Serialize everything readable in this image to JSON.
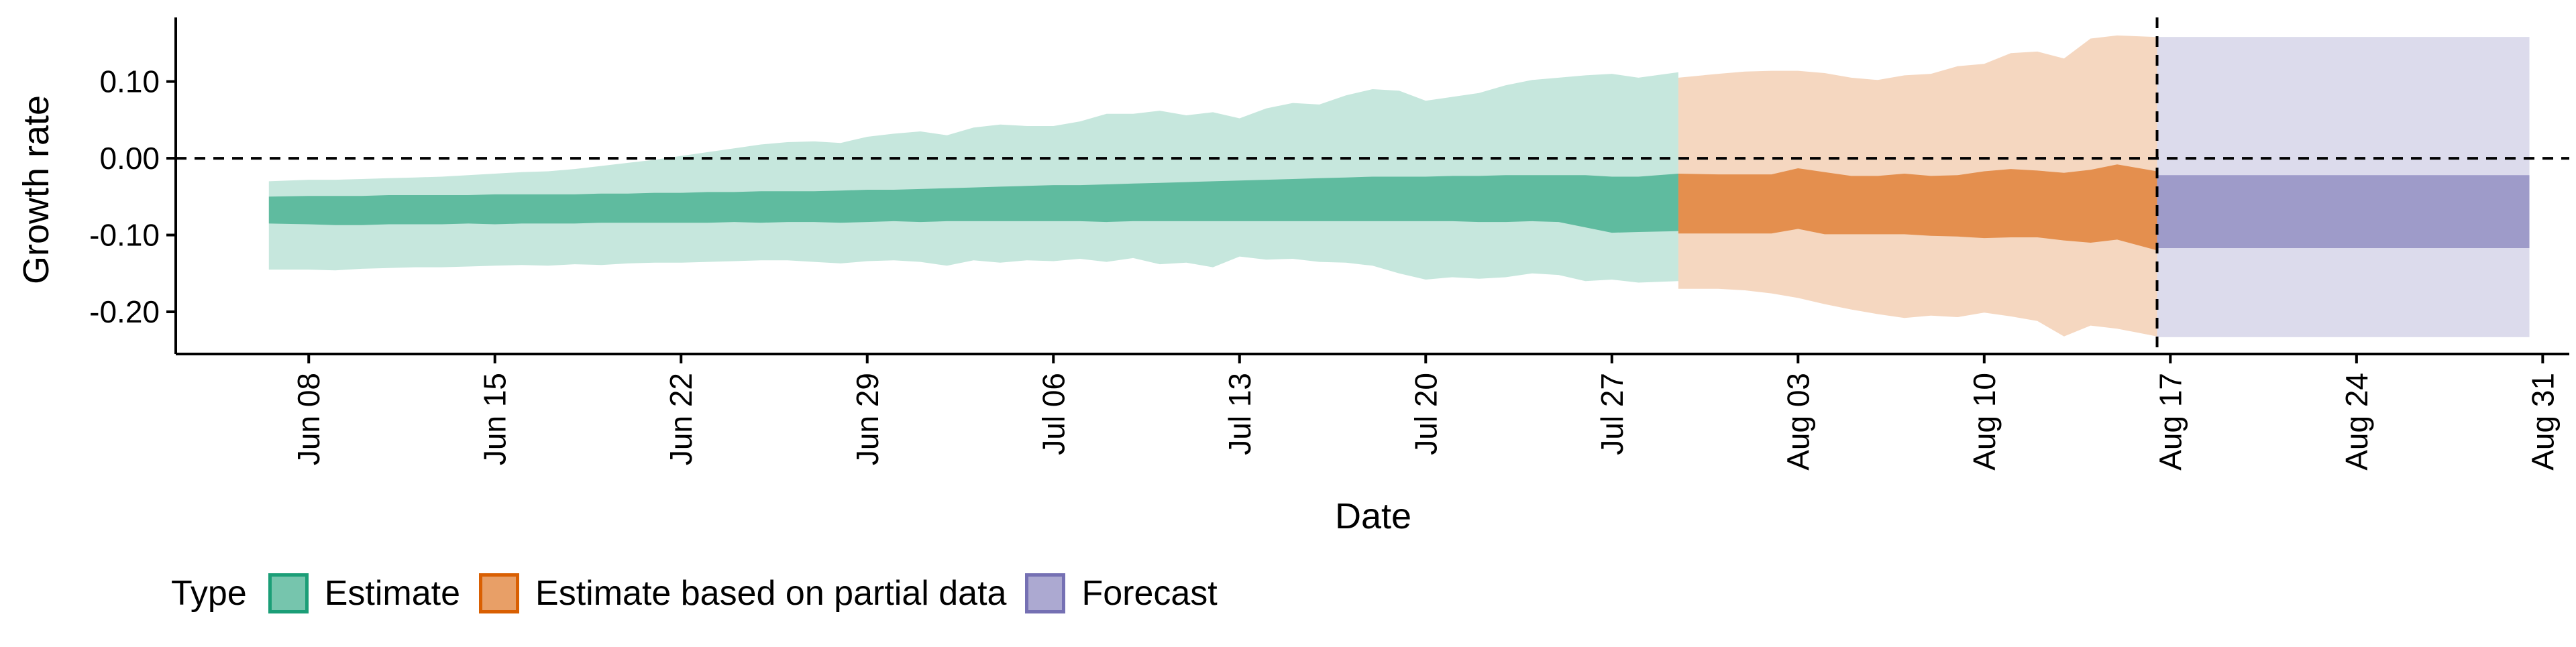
{
  "chart_data": {
    "type": "area",
    "xlabel": "Date",
    "ylabel": "Growth rate",
    "ylim": [
      -0.255,
      0.18
    ],
    "xlim": [
      "2020-06-03",
      "2020-09-01"
    ],
    "y_ticks": [
      -0.2,
      -0.1,
      0.0,
      0.1
    ],
    "y_tick_labels": [
      "-0.20",
      "-0.10",
      "0.00",
      "0.10"
    ],
    "x_ticks": [
      "2020-06-08",
      "2020-06-15",
      "2020-06-22",
      "2020-06-29",
      "2020-07-06",
      "2020-07-13",
      "2020-07-20",
      "2020-07-27",
      "2020-08-03",
      "2020-08-10",
      "2020-08-17",
      "2020-08-24",
      "2020-08-31"
    ],
    "x_tick_labels": [
      "Jun 08",
      "Jun 15",
      "Jun 22",
      "Jun 29",
      "Jul 06",
      "Jul 13",
      "Jul 20",
      "Jul 27",
      "Aug 03",
      "Aug 10",
      "Aug 17",
      "Aug 24",
      "Aug 31"
    ],
    "reference_lines": {
      "horizontal_y": 0.0,
      "vertical_date": "2020-08-16"
    },
    "grid": false,
    "legend": {
      "title": "Type",
      "position": "bottom-left",
      "entries": [
        {
          "label": "Estimate",
          "fill": "#1b9e77",
          "border": "#1b9e77"
        },
        {
          "label": "Estimate based on partial data",
          "fill": "#d95f02",
          "border": "#d95f02"
        },
        {
          "label": "Forecast",
          "fill": "#7570b3",
          "border": "#7570b3"
        }
      ]
    },
    "series": [
      {
        "name": "Estimate",
        "color": "#1b9e77",
        "inner_alpha": 0.6,
        "outer_alpha": 0.25,
        "dates": [
          "2020-06-07",
          "2020-06-08",
          "2020-06-09",
          "2020-06-10",
          "2020-06-11",
          "2020-06-12",
          "2020-06-13",
          "2020-06-14",
          "2020-06-15",
          "2020-06-16",
          "2020-06-17",
          "2020-06-18",
          "2020-06-19",
          "2020-06-20",
          "2020-06-21",
          "2020-06-22",
          "2020-06-23",
          "2020-06-24",
          "2020-06-25",
          "2020-06-26",
          "2020-06-27",
          "2020-06-28",
          "2020-06-29",
          "2020-06-30",
          "2020-07-01",
          "2020-07-02",
          "2020-07-03",
          "2020-07-04",
          "2020-07-05",
          "2020-07-06",
          "2020-07-07",
          "2020-07-08",
          "2020-07-09",
          "2020-07-10",
          "2020-07-11",
          "2020-07-12",
          "2020-07-13",
          "2020-07-14",
          "2020-07-15",
          "2020-07-16",
          "2020-07-17",
          "2020-07-18",
          "2020-07-19",
          "2020-07-20",
          "2020-07-21",
          "2020-07-22",
          "2020-07-23",
          "2020-07-24",
          "2020-07-25",
          "2020-07-26",
          "2020-07-27",
          "2020-07-28",
          "2020-07-29"
        ],
        "lower_90": [
          -0.145,
          -0.145,
          -0.146,
          -0.144,
          -0.143,
          -0.142,
          -0.142,
          -0.141,
          -0.14,
          -0.139,
          -0.14,
          -0.138,
          -0.139,
          -0.137,
          -0.136,
          -0.136,
          -0.135,
          -0.134,
          -0.133,
          -0.133,
          -0.135,
          -0.137,
          -0.134,
          -0.133,
          -0.135,
          -0.14,
          -0.133,
          -0.136,
          -0.133,
          -0.134,
          -0.131,
          -0.135,
          -0.13,
          -0.138,
          -0.136,
          -0.142,
          -0.128,
          -0.132,
          -0.131,
          -0.135,
          -0.136,
          -0.14,
          -0.15,
          -0.158,
          -0.155,
          -0.157,
          -0.155,
          -0.15,
          -0.152,
          -0.16,
          -0.158,
          -0.162,
          -0.16
        ],
        "upper_90": [
          -0.03,
          -0.028,
          -0.028,
          -0.027,
          -0.026,
          -0.025,
          -0.024,
          -0.022,
          -0.02,
          -0.018,
          -0.017,
          -0.014,
          -0.01,
          -0.006,
          -0.002,
          0.003,
          0.008,
          0.013,
          0.018,
          0.021,
          0.022,
          0.02,
          0.028,
          0.032,
          0.035,
          0.03,
          0.04,
          0.044,
          0.042,
          0.042,
          0.048,
          0.058,
          0.058,
          0.062,
          0.056,
          0.06,
          0.052,
          0.065,
          0.072,
          0.07,
          0.082,
          0.09,
          0.088,
          0.075,
          0.08,
          0.085,
          0.095,
          0.102,
          0.105,
          0.108,
          0.11,
          0.105,
          0.112
        ],
        "lower_50": [
          -0.085,
          -0.086,
          -0.087,
          -0.087,
          -0.086,
          -0.086,
          -0.086,
          -0.085,
          -0.086,
          -0.085,
          -0.085,
          -0.085,
          -0.084,
          -0.084,
          -0.084,
          -0.084,
          -0.084,
          -0.083,
          -0.084,
          -0.083,
          -0.083,
          -0.084,
          -0.083,
          -0.082,
          -0.083,
          -0.082,
          -0.082,
          -0.082,
          -0.082,
          -0.082,
          -0.082,
          -0.083,
          -0.082,
          -0.082,
          -0.082,
          -0.082,
          -0.082,
          -0.082,
          -0.082,
          -0.082,
          -0.082,
          -0.082,
          -0.082,
          -0.082,
          -0.082,
          -0.083,
          -0.083,
          -0.082,
          -0.083,
          -0.09,
          -0.097,
          -0.096,
          -0.095
        ],
        "upper_50": [
          -0.05,
          -0.049,
          -0.049,
          -0.049,
          -0.048,
          -0.048,
          -0.048,
          -0.048,
          -0.047,
          -0.047,
          -0.047,
          -0.047,
          -0.046,
          -0.046,
          -0.045,
          -0.045,
          -0.044,
          -0.044,
          -0.043,
          -0.043,
          -0.043,
          -0.042,
          -0.041,
          -0.041,
          -0.04,
          -0.039,
          -0.038,
          -0.037,
          -0.036,
          -0.035,
          -0.035,
          -0.034,
          -0.033,
          -0.032,
          -0.031,
          -0.03,
          -0.029,
          -0.028,
          -0.027,
          -0.026,
          -0.025,
          -0.024,
          -0.024,
          -0.024,
          -0.023,
          -0.023,
          -0.022,
          -0.022,
          -0.022,
          -0.022,
          -0.024,
          -0.024,
          -0.02
        ]
      },
      {
        "name": "Estimate based on partial data",
        "color": "#d95f02",
        "inner_alpha": 0.6,
        "outer_alpha": 0.25,
        "dates": [
          "2020-07-30",
          "2020-07-31",
          "2020-08-01",
          "2020-08-02",
          "2020-08-03",
          "2020-08-04",
          "2020-08-05",
          "2020-08-06",
          "2020-08-07",
          "2020-08-08",
          "2020-08-09",
          "2020-08-10",
          "2020-08-11",
          "2020-08-12",
          "2020-08-13",
          "2020-08-14",
          "2020-08-15",
          "2020-08-16"
        ],
        "lower_90": [
          -0.17,
          -0.17,
          -0.172,
          -0.176,
          -0.182,
          -0.19,
          -0.197,
          -0.203,
          -0.208,
          -0.205,
          -0.207,
          -0.201,
          -0.206,
          -0.212,
          -0.232,
          -0.218,
          -0.222,
          -0.232
        ],
        "upper_90": [
          0.105,
          0.11,
          0.113,
          0.114,
          0.114,
          0.111,
          0.105,
          0.102,
          0.108,
          0.11,
          0.12,
          0.123,
          0.137,
          0.139,
          0.13,
          0.156,
          0.16,
          0.158
        ],
        "lower_50": [
          -0.098,
          -0.098,
          -0.098,
          -0.098,
          -0.092,
          -0.099,
          -0.099,
          -0.099,
          -0.099,
          -0.101,
          -0.102,
          -0.104,
          -0.103,
          -0.103,
          -0.107,
          -0.11,
          -0.106,
          -0.12
        ],
        "upper_50": [
          -0.02,
          -0.021,
          -0.021,
          -0.021,
          -0.013,
          -0.018,
          -0.023,
          -0.023,
          -0.02,
          -0.023,
          -0.022,
          -0.017,
          -0.014,
          -0.016,
          -0.019,
          -0.015,
          -0.008,
          -0.017
        ]
      },
      {
        "name": "Forecast",
        "color": "#7570b3",
        "inner_alpha": 0.6,
        "outer_alpha": 0.25,
        "dates": [
          "2020-08-17",
          "2020-08-30"
        ],
        "lower_90": [
          -0.233,
          -0.233
        ],
        "upper_90": [
          0.158,
          0.158
        ],
        "lower_50": [
          -0.117,
          -0.117
        ],
        "upper_50": [
          -0.022,
          -0.022
        ]
      }
    ]
  }
}
